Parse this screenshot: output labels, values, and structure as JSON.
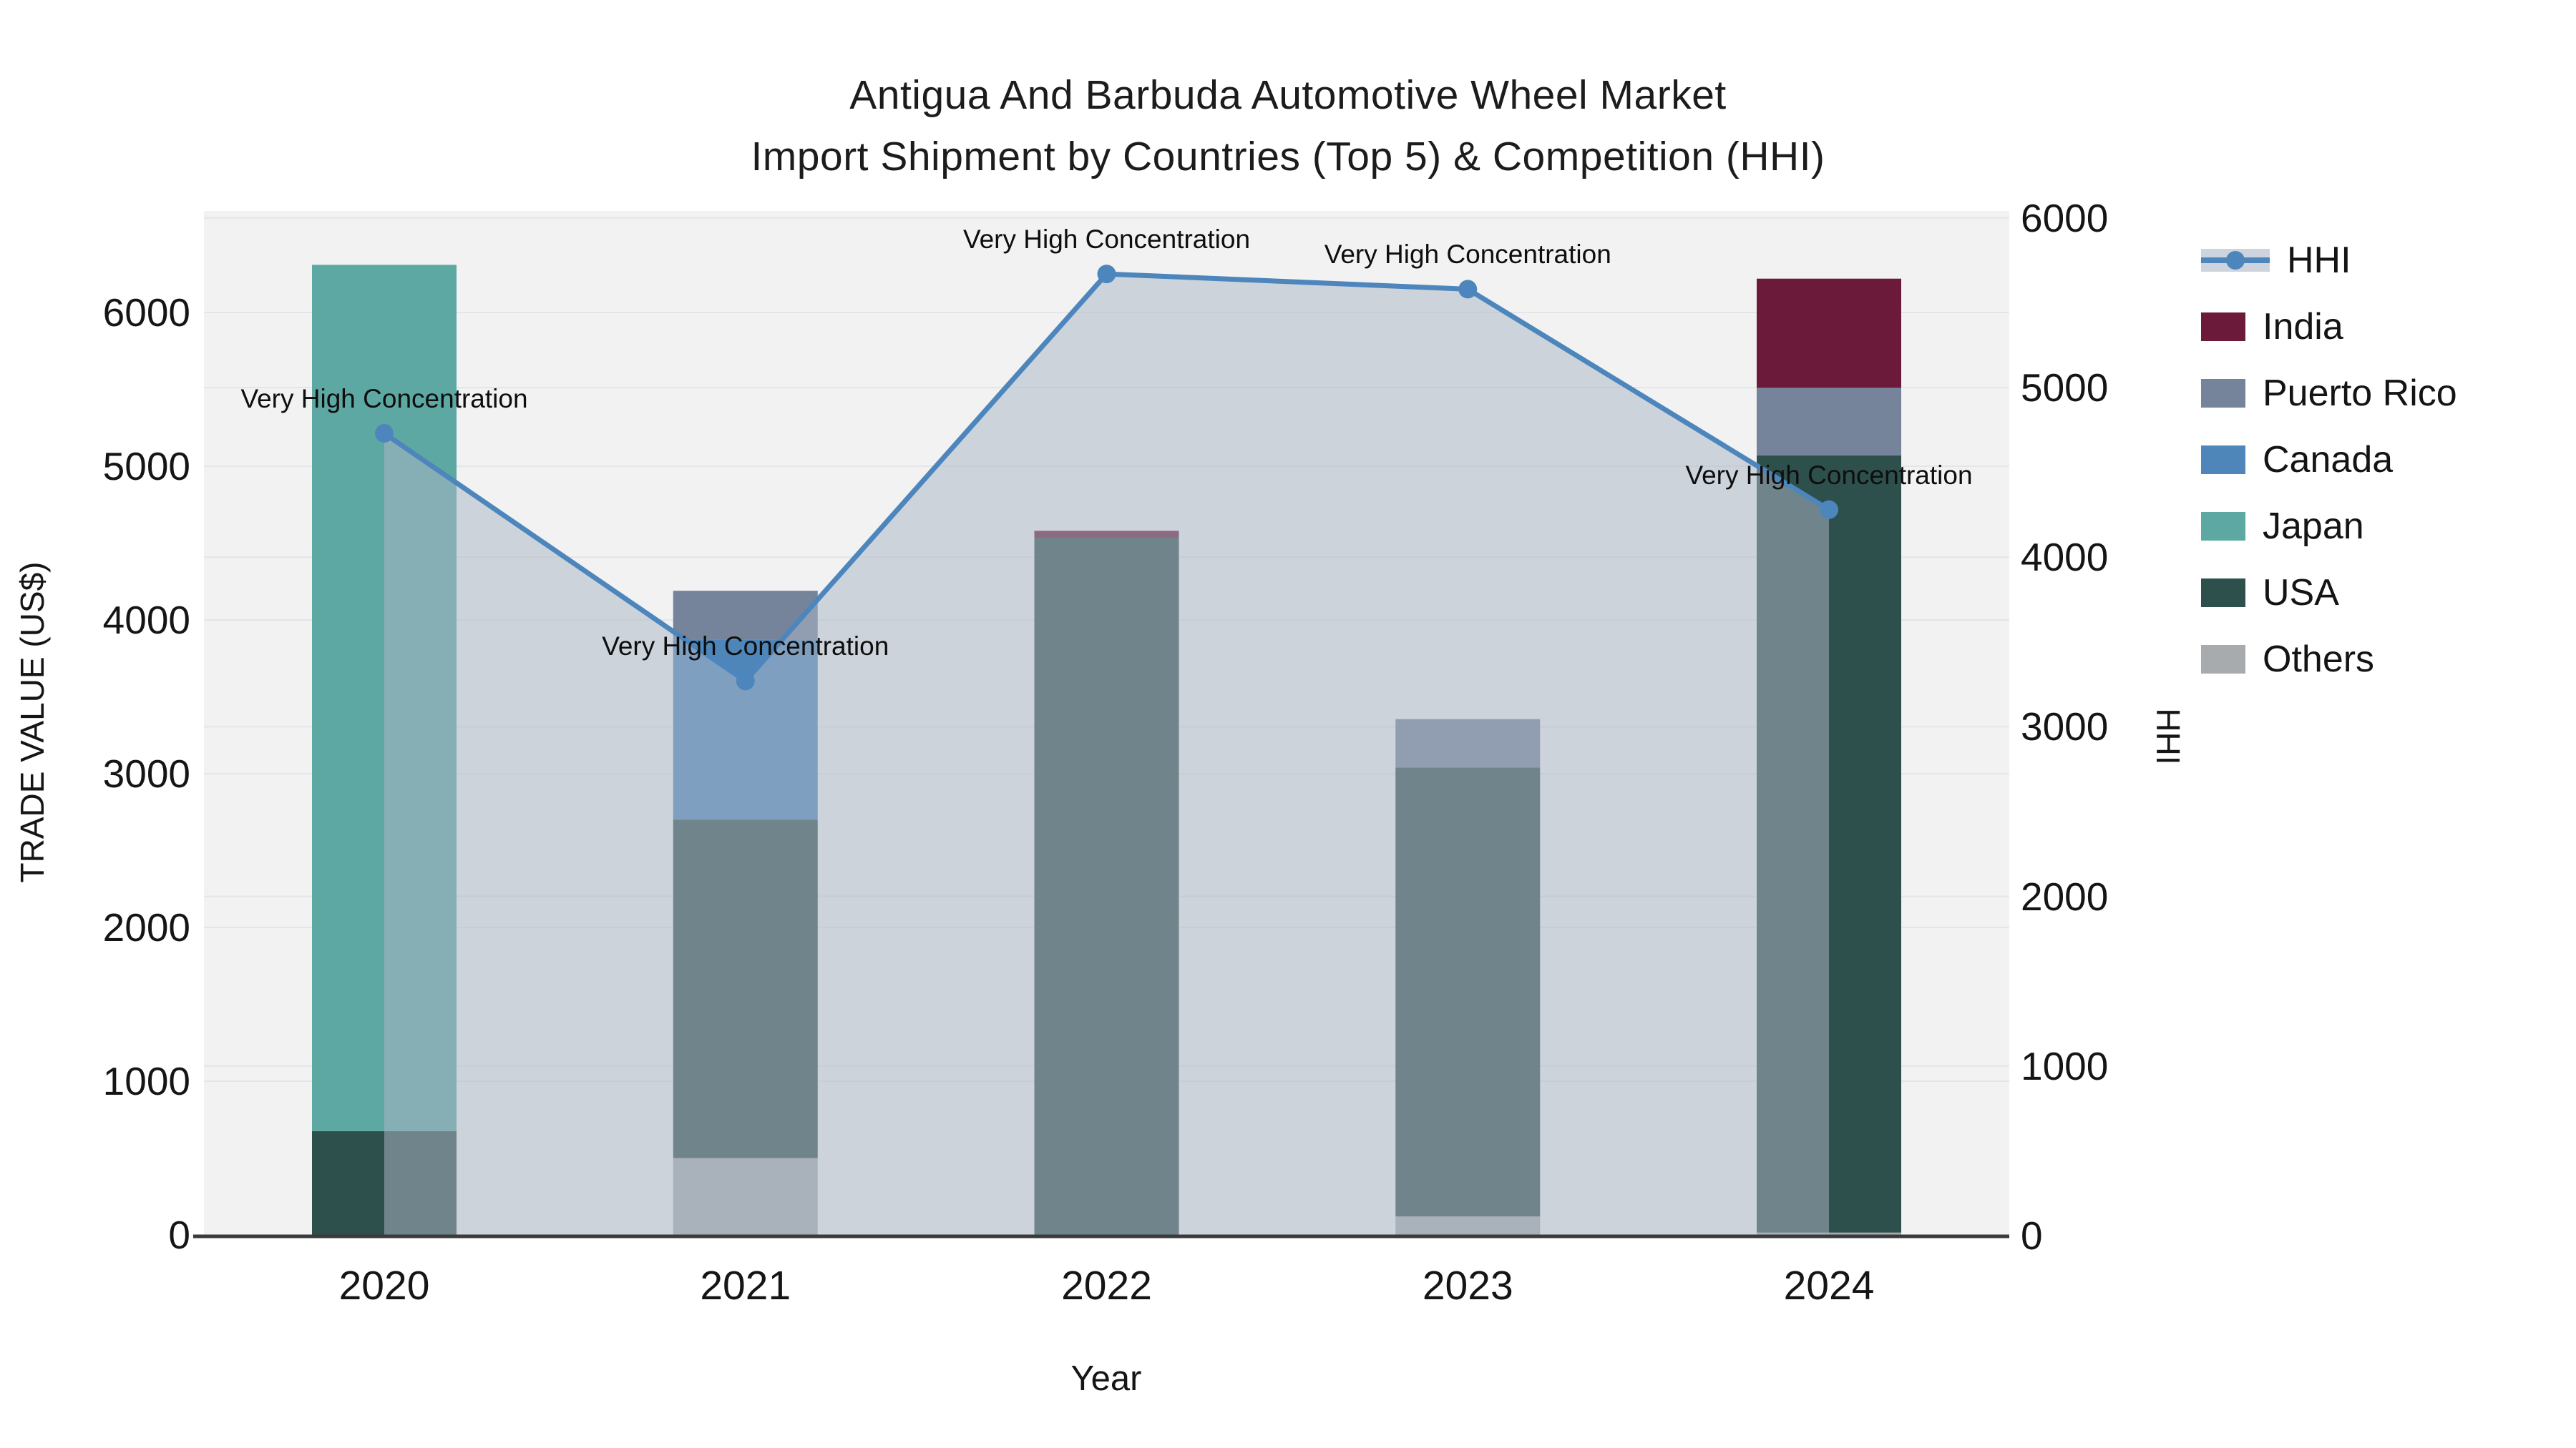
{
  "title": {
    "line1": "Antigua And Barbuda Automotive Wheel Market",
    "line2": "Import Shipment by Countries (Top 5) & Competition (HHI)"
  },
  "axes": {
    "left_title": "TRADE VALUE (US$)",
    "right_title": "HHI",
    "x_title": "Year",
    "left_ticks": [
      "0",
      "1000",
      "2000",
      "3000",
      "4000",
      "5000",
      "6000"
    ],
    "right_ticks": [
      "0",
      "1000",
      "2000",
      "3000",
      "4000",
      "5000",
      "6000"
    ],
    "x_ticks": [
      "2020",
      "2021",
      "2022",
      "2023",
      "2024"
    ]
  },
  "annotation_text": "Very High Concentration",
  "legend": {
    "items": [
      {
        "label": "HHI",
        "type": "line",
        "color": "#4d86bc"
      },
      {
        "label": "India",
        "type": "box",
        "color": "#6b1a3a"
      },
      {
        "label": "Puerto Rico",
        "type": "box",
        "color": "#75849b"
      },
      {
        "label": "Canada",
        "type": "box",
        "color": "#4e86ba"
      },
      {
        "label": "Japan",
        "type": "box",
        "color": "#5ea8a3"
      },
      {
        "label": "USA",
        "type": "box",
        "color": "#2e504d"
      },
      {
        "label": "Others",
        "type": "box",
        "color": "#a8abad"
      }
    ]
  },
  "colors": {
    "plot_bg": "#f2f2f3",
    "grid": "#e3e5e7",
    "axis_line": "#3a3a3a",
    "hhi_line": "#4d86bc",
    "hhi_fill": "rgba(171,182,197,0.52)"
  },
  "chart_data": {
    "type": "bar+line",
    "title": "Antigua And Barbuda Automotive Wheel Market — Import Shipment by Countries (Top 5) & Competition (HHI)",
    "categories": [
      "2020",
      "2021",
      "2022",
      "2023",
      "2024"
    ],
    "stack_order_note": "series listed bottom-to-top of the stacked bars",
    "series": [
      {
        "name": "Others",
        "color": "#a8abad",
        "values": [
          0,
          500,
          0,
          120,
          15
        ]
      },
      {
        "name": "USA",
        "color": "#2e504d",
        "values": [
          675,
          2200,
          4535,
          2920,
          5055
        ]
      },
      {
        "name": "Japan",
        "color": "#5ea8a3",
        "values": [
          5635,
          0,
          0,
          0,
          0
        ]
      },
      {
        "name": "Canada",
        "color": "#4e86ba",
        "values": [
          0,
          1170,
          0,
          0,
          0
        ]
      },
      {
        "name": "Puerto Rico",
        "color": "#75849b",
        "values": [
          0,
          320,
          0,
          315,
          440
        ]
      },
      {
        "name": "India",
        "color": "#6b1a3a",
        "values": [
          0,
          0,
          45,
          0,
          710
        ]
      }
    ],
    "bar_totals": [
      6310,
      4190,
      4580,
      3355,
      6220
    ],
    "line_series": {
      "name": "HHI",
      "color": "#4d86bc",
      "values": [
        4730,
        3270,
        5670,
        5580,
        4280
      ],
      "fill_to_zero": true
    },
    "annotations": [
      {
        "text": "Very High Concentration",
        "x": "2020"
      },
      {
        "text": "Very High Concentration",
        "x": "2021"
      },
      {
        "text": "Very High Concentration",
        "x": "2022"
      },
      {
        "text": "Very High Concentration",
        "x": "2023"
      },
      {
        "text": "Very High Concentration",
        "x": "2024"
      }
    ],
    "xlabel": "Year",
    "ylabel_left": "TRADE VALUE (US$)",
    "ylabel_right": "HHI",
    "left_axis_ticks": [
      0,
      1000,
      2000,
      3000,
      4000,
      5000,
      6000
    ],
    "right_axis_range": [
      0,
      6000
    ],
    "grid": true,
    "legend_position": "right"
  }
}
